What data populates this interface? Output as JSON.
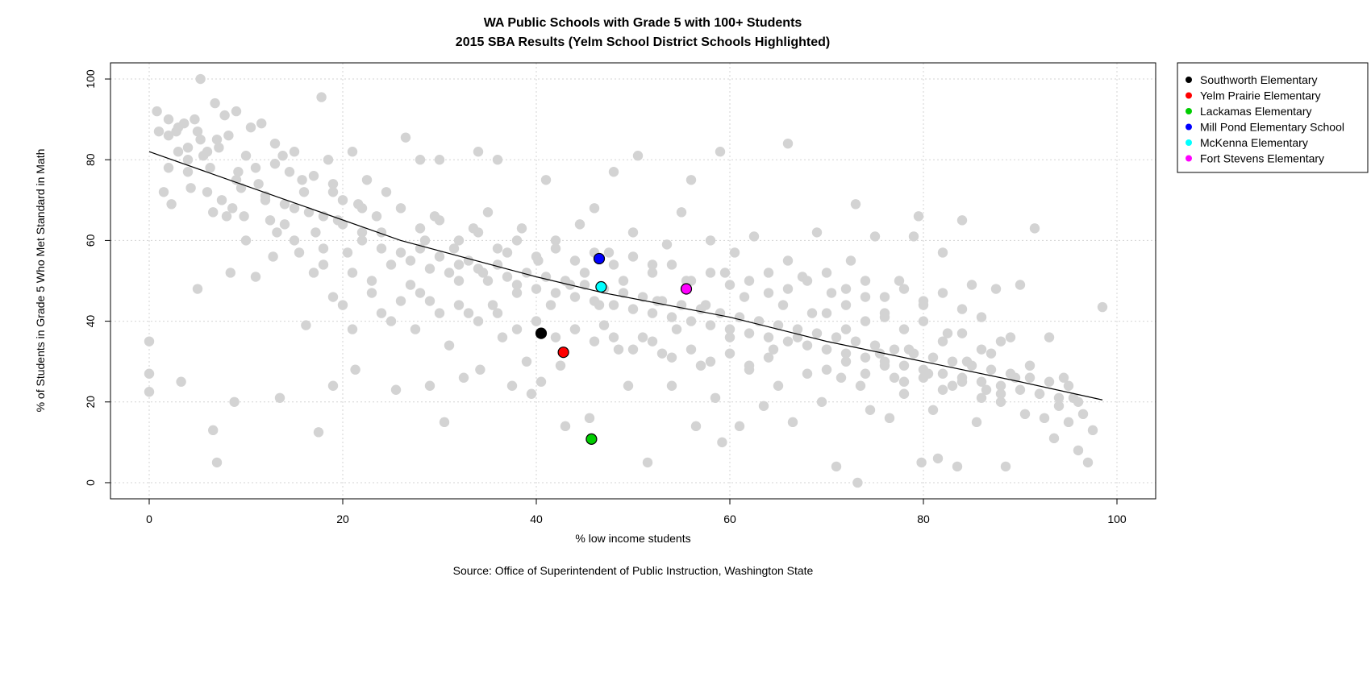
{
  "chart_data": {
    "type": "scatter",
    "title": "WA Public Schools with Grade 5 with 100+ Students",
    "subtitle": "2015 SBA Results (Yelm School District Schools Highlighted)",
    "xlabel": "% low income students",
    "ylabel": "% of Students in Grade 5 Who Met Standard in Math",
    "source": "Source: Office of Superintendent of Public Instruction, Washington State",
    "xlim": [
      -4,
      104
    ],
    "ylim": [
      -4,
      104
    ],
    "xticks": [
      0,
      20,
      40,
      60,
      80,
      100
    ],
    "yticks": [
      0,
      20,
      40,
      60,
      80,
      100
    ],
    "grid": true,
    "legend_position": "right",
    "background_color": "#d3d3d3",
    "trend_line": [
      [
        0,
        82
      ],
      [
        26,
        60
      ],
      [
        40,
        51
      ],
      [
        47,
        47
      ],
      [
        60,
        41
      ],
      [
        70,
        35
      ],
      [
        80,
        30
      ],
      [
        90,
        25
      ],
      [
        98.5,
        20.5
      ]
    ],
    "background_points": [
      [
        0,
        35
      ],
      [
        0,
        27
      ],
      [
        0,
        22.5
      ],
      [
        0.8,
        92
      ],
      [
        1,
        87
      ],
      [
        1.5,
        72
      ],
      [
        2,
        90
      ],
      [
        2,
        86
      ],
      [
        2.3,
        69
      ],
      [
        2.8,
        87
      ],
      [
        3,
        82
      ],
      [
        3.3,
        25
      ],
      [
        3.6,
        89
      ],
      [
        4,
        83
      ],
      [
        4,
        77
      ],
      [
        4.3,
        73
      ],
      [
        4.7,
        90
      ],
      [
        5,
        48
      ],
      [
        5,
        87
      ],
      [
        5.3,
        85
      ],
      [
        5.3,
        100
      ],
      [
        5.6,
        81
      ],
      [
        6,
        72
      ],
      [
        6.3,
        78
      ],
      [
        6.6,
        67
      ],
      [
        6.6,
        13
      ],
      [
        6.8,
        94
      ],
      [
        7,
        5
      ],
      [
        7.2,
        83
      ],
      [
        7.5,
        70
      ],
      [
        7.8,
        91
      ],
      [
        8,
        66
      ],
      [
        8.2,
        86
      ],
      [
        8.4,
        52
      ],
      [
        8.6,
        68
      ],
      [
        8.8,
        20
      ],
      [
        9,
        92
      ],
      [
        9.2,
        77
      ],
      [
        9.5,
        73
      ],
      [
        9.8,
        66
      ],
      [
        10,
        81
      ],
      [
        10.5,
        88
      ],
      [
        11,
        51
      ],
      [
        11.3,
        74
      ],
      [
        11.6,
        89
      ],
      [
        12,
        71
      ],
      [
        12.5,
        65
      ],
      [
        12.8,
        56
      ],
      [
        13,
        79
      ],
      [
        13.2,
        62
      ],
      [
        13.5,
        21
      ],
      [
        13.8,
        81
      ],
      [
        14,
        69
      ],
      [
        14.5,
        77
      ],
      [
        15,
        60
      ],
      [
        15.5,
        57
      ],
      [
        15.8,
        75
      ],
      [
        16.2,
        39
      ],
      [
        16.5,
        67
      ],
      [
        17,
        76
      ],
      [
        17.2,
        62
      ],
      [
        17.5,
        12.5
      ],
      [
        17.8,
        95.5
      ],
      [
        18,
        54
      ],
      [
        18.5,
        80
      ],
      [
        19,
        72
      ],
      [
        19,
        24
      ],
      [
        19.5,
        65
      ],
      [
        20,
        44
      ],
      [
        20.5,
        57
      ],
      [
        21,
        82
      ],
      [
        21.3,
        28
      ],
      [
        21.6,
        69
      ],
      [
        22,
        62
      ],
      [
        22.5,
        75
      ],
      [
        23,
        50
      ],
      [
        23.5,
        66
      ],
      [
        24,
        42
      ],
      [
        24.5,
        72
      ],
      [
        25,
        54
      ],
      [
        25.5,
        23
      ],
      [
        26,
        68
      ],
      [
        26.5,
        85.5
      ],
      [
        27,
        49
      ],
      [
        27.5,
        38
      ],
      [
        28,
        80
      ],
      [
        28.5,
        60
      ],
      [
        29,
        45
      ],
      [
        29,
        24
      ],
      [
        29.5,
        66
      ],
      [
        30,
        80
      ],
      [
        30.5,
        15
      ],
      [
        31,
        34
      ],
      [
        31.5,
        58
      ],
      [
        32,
        50
      ],
      [
        32.5,
        26
      ],
      [
        33,
        42
      ],
      [
        33.5,
        63
      ],
      [
        34,
        82
      ],
      [
        34.2,
        28
      ],
      [
        34.5,
        52
      ],
      [
        35,
        67
      ],
      [
        35.5,
        44
      ],
      [
        36,
        80
      ],
      [
        36.5,
        36
      ],
      [
        37,
        57
      ],
      [
        37.5,
        24
      ],
      [
        38,
        47
      ],
      [
        38.5,
        63
      ],
      [
        39,
        30
      ],
      [
        39.5,
        22
      ],
      [
        40,
        40
      ],
      [
        40.2,
        55
      ],
      [
        40.5,
        25
      ],
      [
        41,
        75
      ],
      [
        41.5,
        44
      ],
      [
        42,
        60
      ],
      [
        42.5,
        29
      ],
      [
        43,
        14
      ],
      [
        43.5,
        49
      ],
      [
        44,
        38
      ],
      [
        44.5,
        64
      ],
      [
        45,
        52
      ],
      [
        45.5,
        16
      ],
      [
        46,
        68
      ],
      [
        46.5,
        44
      ],
      [
        47,
        39
      ],
      [
        47.5,
        57
      ],
      [
        48,
        77
      ],
      [
        48.5,
        33
      ],
      [
        49,
        50
      ],
      [
        49.5,
        24
      ],
      [
        50,
        62
      ],
      [
        50.5,
        81
      ],
      [
        51,
        36
      ],
      [
        51.5,
        5
      ],
      [
        52,
        54
      ],
      [
        52.5,
        45
      ],
      [
        53,
        32
      ],
      [
        53.5,
        59
      ],
      [
        54,
        24
      ],
      [
        54.5,
        38
      ],
      [
        55,
        67
      ],
      [
        55.5,
        50
      ],
      [
        56,
        75
      ],
      [
        56.5,
        14
      ],
      [
        57,
        29
      ],
      [
        57.5,
        44
      ],
      [
        58,
        60
      ],
      [
        58.5,
        21
      ],
      [
        59,
        82
      ],
      [
        59.2,
        10
      ],
      [
        59.5,
        52
      ],
      [
        60,
        36
      ],
      [
        60.5,
        57
      ],
      [
        61,
        14
      ],
      [
        61.5,
        46
      ],
      [
        62,
        28
      ],
      [
        62.5,
        61
      ],
      [
        63,
        40
      ],
      [
        63.5,
        19
      ],
      [
        64,
        52
      ],
      [
        64.5,
        33
      ],
      [
        65,
        24
      ],
      [
        65.5,
        44
      ],
      [
        66,
        84
      ],
      [
        66.5,
        15
      ],
      [
        67,
        36
      ],
      [
        67.5,
        51
      ],
      [
        68,
        27
      ],
      [
        68.5,
        42
      ],
      [
        69,
        62
      ],
      [
        69.5,
        20
      ],
      [
        70,
        33
      ],
      [
        70.5,
        47
      ],
      [
        71,
        4
      ],
      [
        71.5,
        26
      ],
      [
        72,
        38
      ],
      [
        72.5,
        55
      ],
      [
        73,
        69
      ],
      [
        73.2,
        0
      ],
      [
        73.5,
        24
      ],
      [
        74,
        46
      ],
      [
        74.5,
        18
      ],
      [
        75,
        61
      ],
      [
        75.5,
        32
      ],
      [
        76,
        41
      ],
      [
        76.5,
        16
      ],
      [
        77,
        26
      ],
      [
        77.5,
        50
      ],
      [
        78,
        22
      ],
      [
        78.5,
        33
      ],
      [
        79,
        61
      ],
      [
        79.5,
        66
      ],
      [
        79.8,
        5
      ],
      [
        80,
        44
      ],
      [
        80.5,
        27
      ],
      [
        81,
        18
      ],
      [
        81.5,
        6
      ],
      [
        82,
        57
      ],
      [
        82.5,
        37
      ],
      [
        83,
        24
      ],
      [
        83.5,
        4
      ],
      [
        84,
        65
      ],
      [
        84.5,
        30
      ],
      [
        85,
        49
      ],
      [
        85.5,
        15
      ],
      [
        86,
        41
      ],
      [
        86.5,
        23
      ],
      [
        87,
        32
      ],
      [
        87.5,
        48
      ],
      [
        88,
        20
      ],
      [
        88.5,
        4
      ],
      [
        89,
        36
      ],
      [
        89.5,
        26
      ],
      [
        90,
        49
      ],
      [
        90.5,
        17
      ],
      [
        91,
        29
      ],
      [
        91.5,
        63
      ],
      [
        92,
        22
      ],
      [
        92.5,
        16
      ],
      [
        93,
        36
      ],
      [
        93.5,
        11
      ],
      [
        94,
        19
      ],
      [
        94.5,
        26
      ],
      [
        95,
        15
      ],
      [
        95.5,
        21
      ],
      [
        96,
        8
      ],
      [
        96.5,
        17
      ],
      [
        97,
        5
      ],
      [
        97.5,
        13
      ],
      [
        98.5,
        43.5
      ],
      [
        3,
        88
      ],
      [
        6,
        82
      ],
      [
        9,
        75
      ],
      [
        12,
        70
      ],
      [
        15,
        68
      ],
      [
        18,
        66
      ],
      [
        20,
        64
      ],
      [
        22,
        60
      ],
      [
        24,
        58
      ],
      [
        26,
        57
      ],
      [
        27,
        55
      ],
      [
        28,
        58
      ],
      [
        29,
        53
      ],
      [
        30,
        56
      ],
      [
        31,
        52
      ],
      [
        32,
        54
      ],
      [
        33,
        55
      ],
      [
        34,
        53
      ],
      [
        35,
        50
      ],
      [
        36,
        54
      ],
      [
        37,
        51
      ],
      [
        38,
        49
      ],
      [
        39,
        52
      ],
      [
        40,
        48
      ],
      [
        41,
        51
      ],
      [
        42,
        47
      ],
      [
        43,
        50
      ],
      [
        44,
        46
      ],
      [
        45,
        49
      ],
      [
        46,
        45
      ],
      [
        47,
        48
      ],
      [
        48,
        44
      ],
      [
        49,
        47
      ],
      [
        50,
        43
      ],
      [
        51,
        46
      ],
      [
        52,
        42
      ],
      [
        53,
        45
      ],
      [
        54,
        41
      ],
      [
        55,
        44
      ],
      [
        56,
        40
      ],
      [
        57,
        43
      ],
      [
        58,
        39
      ],
      [
        59,
        42
      ],
      [
        60,
        38
      ],
      [
        61,
        41
      ],
      [
        62,
        37
      ],
      [
        63,
        40
      ],
      [
        64,
        36
      ],
      [
        65,
        39
      ],
      [
        66,
        35
      ],
      [
        67,
        38
      ],
      [
        68,
        34
      ],
      [
        69,
        37
      ],
      [
        70,
        33
      ],
      [
        71,
        36
      ],
      [
        72,
        32
      ],
      [
        73,
        35
      ],
      [
        74,
        31
      ],
      [
        75,
        34
      ],
      [
        76,
        30
      ],
      [
        77,
        33
      ],
      [
        78,
        29
      ],
      [
        79,
        32
      ],
      [
        80,
        28
      ],
      [
        81,
        31
      ],
      [
        82,
        27
      ],
      [
        83,
        30
      ],
      [
        84,
        26
      ],
      [
        85,
        29
      ],
      [
        86,
        25
      ],
      [
        87,
        28
      ],
      [
        88,
        24
      ],
      [
        89,
        27
      ],
      [
        90,
        23
      ],
      [
        91,
        26
      ],
      [
        92,
        22
      ],
      [
        93,
        25
      ],
      [
        94,
        21
      ],
      [
        95,
        24
      ],
      [
        96,
        20
      ],
      [
        28,
        63
      ],
      [
        30,
        65
      ],
      [
        32,
        60
      ],
      [
        34,
        62
      ],
      [
        36,
        58
      ],
      [
        38,
        60
      ],
      [
        40,
        56
      ],
      [
        42,
        58
      ],
      [
        44,
        55
      ],
      [
        46,
        57
      ],
      [
        48,
        54
      ],
      [
        50,
        56
      ],
      [
        52,
        52
      ],
      [
        54,
        54
      ],
      [
        56,
        50
      ],
      [
        58,
        52
      ],
      [
        60,
        49
      ],
      [
        62,
        50
      ],
      [
        64,
        47
      ],
      [
        66,
        48
      ],
      [
        26,
        45
      ],
      [
        28,
        47
      ],
      [
        30,
        42
      ],
      [
        32,
        44
      ],
      [
        34,
        40
      ],
      [
        36,
        42
      ],
      [
        38,
        38
      ],
      [
        40,
        40
      ],
      [
        42,
        36
      ],
      [
        44,
        38
      ],
      [
        46,
        35
      ],
      [
        48,
        36
      ],
      [
        50,
        33
      ],
      [
        52,
        35
      ],
      [
        54,
        31
      ],
      [
        56,
        33
      ],
      [
        58,
        30
      ],
      [
        60,
        32
      ],
      [
        62,
        29
      ],
      [
        64,
        31
      ],
      [
        70,
        42
      ],
      [
        72,
        44
      ],
      [
        74,
        40
      ],
      [
        76,
        42
      ],
      [
        78,
        38
      ],
      [
        80,
        40
      ],
      [
        82,
        35
      ],
      [
        84,
        37
      ],
      [
        86,
        33
      ],
      [
        88,
        35
      ],
      [
        70,
        28
      ],
      [
        72,
        30
      ],
      [
        74,
        27
      ],
      [
        76,
        29
      ],
      [
        78,
        25
      ],
      [
        80,
        26
      ],
      [
        82,
        23
      ],
      [
        84,
        25
      ],
      [
        86,
        21
      ],
      [
        88,
        22
      ],
      [
        66,
        55
      ],
      [
        68,
        50
      ],
      [
        70,
        52
      ],
      [
        72,
        48
      ],
      [
        74,
        50
      ],
      [
        76,
        46
      ],
      [
        78,
        48
      ],
      [
        80,
        45
      ],
      [
        82,
        47
      ],
      [
        84,
        43
      ],
      [
        10,
        60
      ],
      [
        14,
        64
      ],
      [
        16,
        72
      ],
      [
        18,
        58
      ],
      [
        20,
        70
      ],
      [
        22,
        68
      ],
      [
        24,
        62
      ],
      [
        11,
        78
      ],
      [
        13,
        84
      ],
      [
        19,
        74
      ],
      [
        4,
        80
      ],
      [
        2,
        78
      ],
      [
        7,
        85
      ],
      [
        15,
        82
      ],
      [
        17,
        52
      ],
      [
        21,
        52
      ],
      [
        23,
        47
      ],
      [
        25,
        40
      ],
      [
        21,
        38
      ],
      [
        19,
        46
      ]
    ],
    "highlighted_series": [
      {
        "name": "Southworth Elementary",
        "color": "#000000",
        "x": 40.5,
        "y": 37
      },
      {
        "name": "Yelm Prairie Elementary",
        "color": "#ff0000",
        "x": 42.8,
        "y": 32.3
      },
      {
        "name": "Lackamas Elementary",
        "color": "#00cd00",
        "x": 45.7,
        "y": 10.8
      },
      {
        "name": "Mill Pond Elementary School",
        "color": "#0000ff",
        "x": 46.5,
        "y": 55.5
      },
      {
        "name": "McKenna Elementary",
        "color": "#00ffff",
        "x": 46.7,
        "y": 48.5
      },
      {
        "name": "Fort Stevens Elementary",
        "color": "#ff00ff",
        "x": 55.5,
        "y": 48
      }
    ]
  }
}
